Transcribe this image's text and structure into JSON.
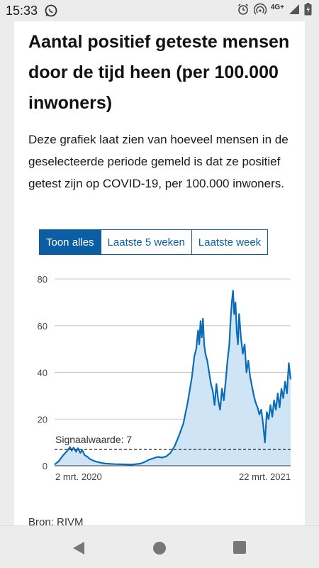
{
  "status_bar": {
    "time": "15:33",
    "network": "4G+",
    "icons": [
      "whatsapp-icon",
      "alarm-icon",
      "hotspot-icon",
      "signal-icon",
      "battery-icon"
    ]
  },
  "article": {
    "title": "Aantal positief geteste mensen door de tijd heen (per 100.000 inwoners)",
    "description": "Deze grafiek laat zien van hoeveel mensen in de geselecteerde periode gemeld is dat ze positief getest zijn op COVID-19, per 100.000 inwoners.",
    "source": "Bron: RIVM"
  },
  "tabs": [
    {
      "label": "Toon alles",
      "active": true
    },
    {
      "label": "Laatste 5 weken",
      "active": false
    },
    {
      "label": "Laatste week",
      "active": false
    }
  ],
  "chart_data": {
    "type": "area",
    "title": "",
    "xlabel": "",
    "ylabel": "",
    "ylim": [
      0,
      80
    ],
    "yticks": [
      "0",
      "20",
      "40",
      "60",
      "80"
    ],
    "xlim": [
      "2020-03-02",
      "2021-03-22"
    ],
    "xtick_labels": [
      "2 mrt. 2020",
      "22 mrt. 2021"
    ],
    "grid": true,
    "threshold": {
      "label": "Signaalwaarde: 7",
      "value": 7
    },
    "line_color": "#0b6cb8",
    "fill_color": "#cfe4f5",
    "series": [
      {
        "values": [
          [
            "2020-03-02",
            0.5
          ],
          [
            "2020-03-09",
            2
          ],
          [
            "2020-03-16",
            4.5
          ],
          [
            "2020-03-23",
            6.5
          ],
          [
            "2020-03-27",
            8
          ],
          [
            "2020-03-30",
            6.5
          ],
          [
            "2020-04-02",
            7.8
          ],
          [
            "2020-04-06",
            6
          ],
          [
            "2020-04-09",
            7.5
          ],
          [
            "2020-04-13",
            5.5
          ],
          [
            "2020-04-16",
            6.8
          ],
          [
            "2020-04-20",
            4.5
          ],
          [
            "2020-04-24",
            4
          ],
          [
            "2020-04-28",
            3
          ],
          [
            "2020-05-04",
            2.2
          ],
          [
            "2020-05-11",
            1.6
          ],
          [
            "2020-05-18",
            1.2
          ],
          [
            "2020-05-25",
            0.9
          ],
          [
            "2020-06-08",
            0.7
          ],
          [
            "2020-06-22",
            0.6
          ],
          [
            "2020-07-06",
            0.5
          ],
          [
            "2020-07-20",
            0.9
          ],
          [
            "2020-07-27",
            1.6
          ],
          [
            "2020-08-03",
            2.6
          ],
          [
            "2020-08-10",
            3.2
          ],
          [
            "2020-08-17",
            3.8
          ],
          [
            "2020-08-24",
            3.5
          ],
          [
            "2020-08-31",
            4
          ],
          [
            "2020-09-07",
            5.5
          ],
          [
            "2020-09-14",
            8.5
          ],
          [
            "2020-09-21",
            13
          ],
          [
            "2020-09-28",
            18
          ],
          [
            "2020-10-05",
            27
          ],
          [
            "2020-10-12",
            38
          ],
          [
            "2020-10-16",
            47
          ],
          [
            "2020-10-19",
            50
          ],
          [
            "2020-10-22",
            58
          ],
          [
            "2020-10-24",
            52
          ],
          [
            "2020-10-26",
            62
          ],
          [
            "2020-10-28",
            55
          ],
          [
            "2020-10-30",
            63
          ],
          [
            "2020-11-01",
            52
          ],
          [
            "2020-11-03",
            48
          ],
          [
            "2020-11-06",
            45
          ],
          [
            "2020-11-09",
            40
          ],
          [
            "2020-11-12",
            35
          ],
          [
            "2020-11-15",
            32
          ],
          [
            "2020-11-18",
            26
          ],
          [
            "2020-11-21",
            35
          ],
          [
            "2020-11-24",
            28
          ],
          [
            "2020-11-27",
            24
          ],
          [
            "2020-11-30",
            33
          ],
          [
            "2020-12-03",
            28
          ],
          [
            "2020-12-06",
            36
          ],
          [
            "2020-12-09",
            45
          ],
          [
            "2020-12-12",
            52
          ],
          [
            "2020-12-14",
            62
          ],
          [
            "2020-12-16",
            70
          ],
          [
            "2020-12-18",
            75
          ],
          [
            "2020-12-20",
            65
          ],
          [
            "2020-12-22",
            70
          ],
          [
            "2020-12-24",
            58
          ],
          [
            "2020-12-26",
            52
          ],
          [
            "2020-12-28",
            65
          ],
          [
            "2020-12-31",
            55
          ],
          [
            "2021-01-03",
            48
          ],
          [
            "2021-01-06",
            52
          ],
          [
            "2021-01-09",
            40
          ],
          [
            "2021-01-12",
            45
          ],
          [
            "2021-01-15",
            38
          ],
          [
            "2021-01-18",
            34
          ],
          [
            "2021-01-21",
            30
          ],
          [
            "2021-01-24",
            27
          ],
          [
            "2021-01-27",
            25
          ],
          [
            "2021-01-30",
            22
          ],
          [
            "2021-02-02",
            24
          ],
          [
            "2021-02-05",
            18
          ],
          [
            "2021-02-08",
            10
          ],
          [
            "2021-02-11",
            23
          ],
          [
            "2021-02-14",
            20
          ],
          [
            "2021-02-17",
            26
          ],
          [
            "2021-02-20",
            21
          ],
          [
            "2021-02-23",
            28
          ],
          [
            "2021-02-26",
            24
          ],
          [
            "2021-03-01",
            31
          ],
          [
            "2021-03-04",
            25
          ],
          [
            "2021-03-07",
            33
          ],
          [
            "2021-03-10",
            29
          ],
          [
            "2021-03-13",
            36
          ],
          [
            "2021-03-16",
            31
          ],
          [
            "2021-03-19",
            44
          ],
          [
            "2021-03-22",
            37
          ]
        ]
      }
    ]
  }
}
